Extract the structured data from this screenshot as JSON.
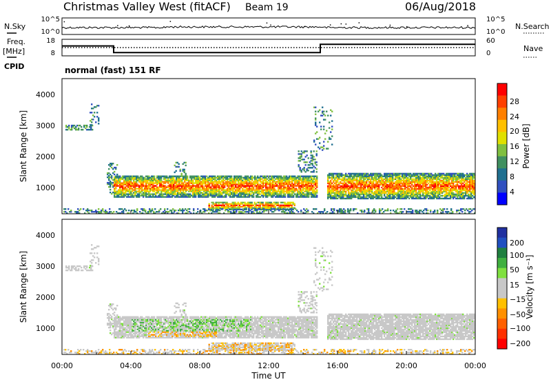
{
  "header": {
    "title": "Christmas Valley West (fitACF)",
    "beam": "Beam 19",
    "date": "06/Aug/2018"
  },
  "left_labels": {
    "nsky": "N.Sky",
    "freq": "Freq.",
    "freq_unit": "[MHz]",
    "cpid": "CPID"
  },
  "right_labels": {
    "nsearch": "N.Search",
    "nave": "Nave"
  },
  "cpid_text": "normal (fast) 151 RF",
  "chart_data": [
    {
      "type": "line",
      "name": "noise",
      "left_ticks": [
        "10^5",
        "10^0"
      ],
      "right_ticks": [
        "10^5",
        "10^0"
      ]
    },
    {
      "type": "line",
      "name": "frequency-nave",
      "left_ticks": [
        "18",
        "8"
      ],
      "right_ticks": [
        "60",
        "0"
      ],
      "freq_steps": [
        {
          "x0": 0,
          "x1": 3,
          "value": 14
        },
        {
          "x0": 3,
          "x1": 15,
          "value": 10
        },
        {
          "x0": 15,
          "x1": 24,
          "value": 15
        }
      ],
      "nave_level": 30
    },
    {
      "type": "heatmap",
      "name": "power",
      "ylabel": "Slant Range [km]",
      "ylim": [
        180,
        4500
      ],
      "yticks": [
        "4000",
        "3000",
        "2000",
        "1000"
      ],
      "xlim": [
        0,
        24
      ],
      "colorbar_label": "Power [dB]",
      "colorbar_ticks": [
        "28",
        "24",
        "20",
        "16",
        "12",
        "8",
        "4"
      ],
      "colorbar_colors": [
        "#ff0000",
        "#ff4000",
        "#ff8000",
        "#ffc000",
        "#e0e000",
        "#80c040",
        "#409060",
        "#207090",
        "#3050c0",
        "#0000ff"
      ]
    },
    {
      "type": "heatmap",
      "name": "velocity",
      "ylabel": "Slant Range [km]",
      "ylim": [
        180,
        4500
      ],
      "yticks": [
        "4000",
        "3000",
        "2000",
        "1000"
      ],
      "xlim": [
        0,
        24
      ],
      "xticks": [
        "00:00",
        "04:00",
        "08:00",
        "12:00",
        "16:00",
        "20:00",
        "00:00"
      ],
      "xlabel": "Time UT",
      "colorbar_label": "Velocity [m s⁻¹]",
      "colorbar_ticks": [
        "200",
        "100",
        "50",
        "15",
        "−15",
        "−50",
        "−100",
        "−200"
      ],
      "colorbar_colors": [
        "#2030a0",
        "#2050c0",
        "#208040",
        "#40b040",
        "#80e040",
        "#c8c8c8",
        "#c8c8c8",
        "#ffc000",
        "#ff9000",
        "#ff6000",
        "#ff3000",
        "#ff0000"
      ]
    }
  ]
}
